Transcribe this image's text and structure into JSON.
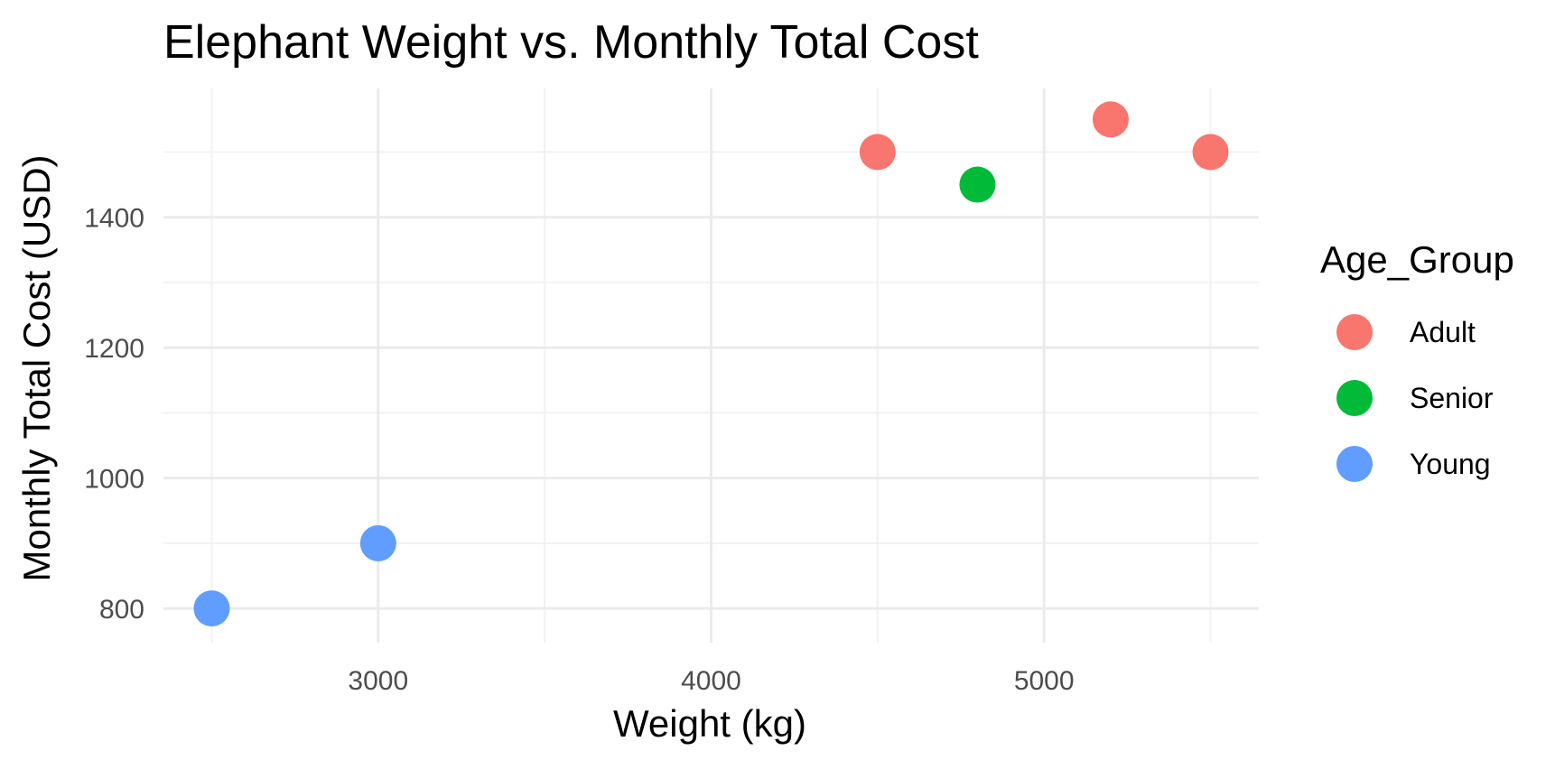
{
  "chart_data": {
    "type": "scatter",
    "title": "Elephant Weight vs. Monthly Total Cost",
    "xlabel": "Weight (kg)",
    "ylabel": "Monthly Total Cost (USD)",
    "xlim": [
      2355,
      5645
    ],
    "ylim": [
      747.5,
      1597.5
    ],
    "x_ticks": [
      3000,
      4000,
      5000
    ],
    "y_ticks": [
      800,
      1000,
      1200,
      1400
    ],
    "x_minor_ticks": [
      2500,
      3500,
      4500,
      5500
    ],
    "y_minor_ticks": [
      900,
      1100,
      1300,
      1500
    ],
    "grid": true,
    "legend": {
      "title": "Age_Group",
      "position": "right"
    },
    "series": [
      {
        "name": "Adult",
        "color": "#F8766D",
        "points": [
          {
            "x": 4500,
            "y": 1500
          },
          {
            "x": 5200,
            "y": 1550
          },
          {
            "x": 5500,
            "y": 1500
          }
        ]
      },
      {
        "name": "Senior",
        "color": "#00BA38",
        "points": [
          {
            "x": 4800,
            "y": 1450
          }
        ]
      },
      {
        "name": "Young",
        "color": "#619CFF",
        "points": [
          {
            "x": 2500,
            "y": 800
          },
          {
            "x": 3000,
            "y": 900
          }
        ]
      }
    ]
  }
}
